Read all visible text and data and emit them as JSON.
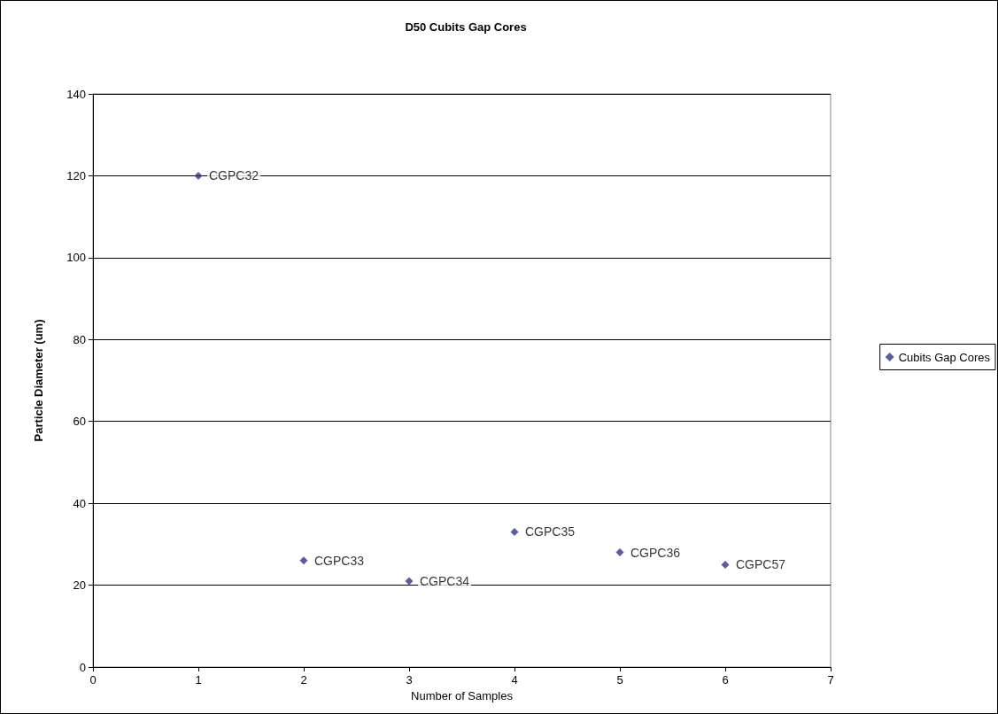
{
  "chart_data": {
    "type": "scatter",
    "title": "D50 Cubits Gap Cores",
    "xlabel": "Number of Samples",
    "ylabel": "Particle Diameter (um)",
    "x": [
      1,
      2,
      3,
      4,
      5,
      6
    ],
    "series": [
      {
        "name": "Cubits Gap Cores",
        "color": "#333380",
        "values": [
          120,
          26,
          21,
          33,
          28,
          25
        ]
      }
    ],
    "xlim": [
      0,
      7
    ],
    "xticks": [
      0,
      1,
      2,
      3,
      4,
      5,
      6,
      7
    ],
    "ylim": [
      0,
      140
    ],
    "yticks": [
      0,
      20,
      40,
      60,
      80,
      100,
      120,
      140
    ],
    "grid": "y",
    "legend": "right",
    "marker": "diamond",
    "annotations": [
      {
        "text": "CGPC32",
        "x": 1,
        "y": 120
      },
      {
        "text": "CGPC33",
        "x": 2,
        "y": 26
      },
      {
        "text": "CGPC34",
        "x": 3,
        "y": 21
      },
      {
        "text": "CGPC35",
        "x": 4,
        "y": 33
      },
      {
        "text": "CGPC36",
        "x": 5,
        "y": 28
      },
      {
        "text": "CGPC57",
        "x": 6,
        "y": 25
      }
    ]
  }
}
